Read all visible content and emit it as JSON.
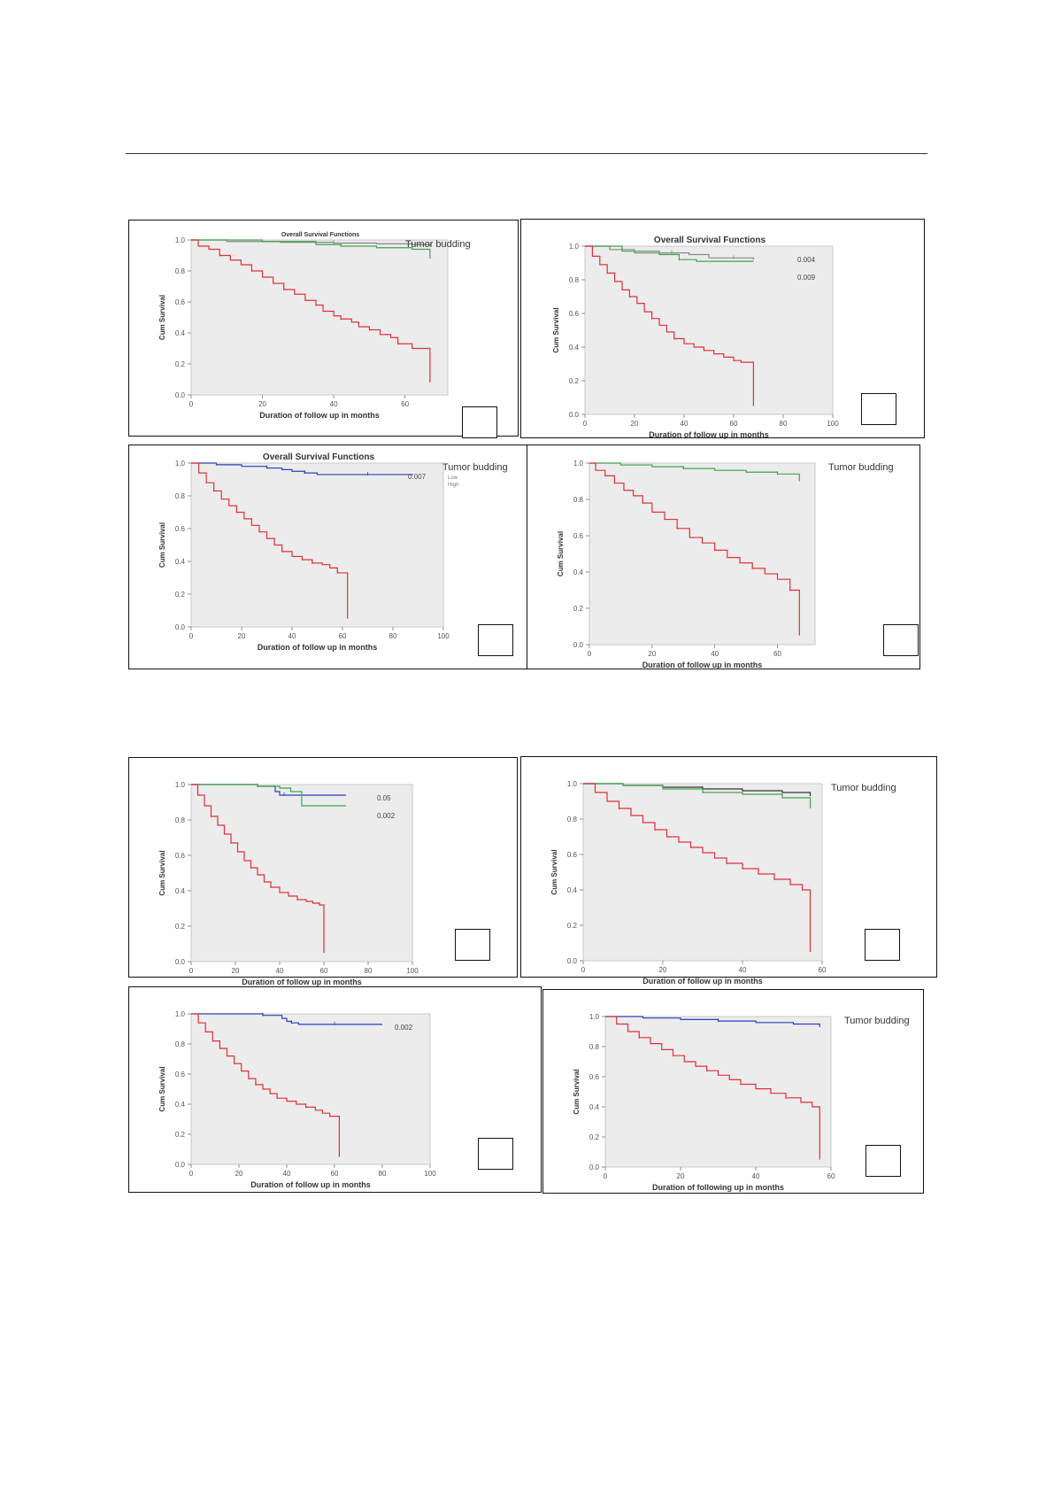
{
  "colors": {
    "red": "#e0303a",
    "green": "#3fa34d",
    "blue": "#2c3fbf",
    "gray": "#888888"
  },
  "chart_data": [
    {
      "type": "line",
      "title": "Overall Survival Functions",
      "xlabel": "Duration of follow up in months",
      "ylabel": "Cum Survival",
      "xlim": [
        0,
        72
      ],
      "x_ticks": [
        "0",
        "20",
        "40",
        "60"
      ],
      "ylim": [
        0,
        1
      ],
      "y_ticks": [
        "0.0",
        "0.2",
        "0.4",
        "0.6",
        "0.8",
        "1.0"
      ],
      "legend_title": "Tumor budding",
      "series": [
        {
          "color": "#888888",
          "x": [
            0,
            10,
            25,
            40,
            52,
            62,
            67
          ],
          "y": [
            1.0,
            0.99,
            0.985,
            0.98,
            0.975,
            0.97,
            0.96
          ]
        },
        {
          "color": "#3fa34d",
          "x": [
            0,
            20,
            35,
            42,
            52,
            62,
            67
          ],
          "y": [
            1.0,
            0.99,
            0.97,
            0.96,
            0.95,
            0.94,
            0.88
          ]
        },
        {
          "color": "#e0303a",
          "x": [
            0,
            2,
            5,
            8,
            11,
            14,
            17,
            20,
            23,
            26,
            29,
            32,
            35,
            37,
            40,
            42,
            45,
            47,
            50,
            53,
            56,
            58,
            62,
            67
          ],
          "y": [
            1.0,
            0.96,
            0.94,
            0.9,
            0.87,
            0.84,
            0.8,
            0.76,
            0.72,
            0.68,
            0.65,
            0.61,
            0.58,
            0.54,
            0.51,
            0.49,
            0.47,
            0.44,
            0.42,
            0.39,
            0.37,
            0.33,
            0.3,
            0.08
          ]
        }
      ]
    },
    {
      "type": "line",
      "title": "Overall Survival Functions",
      "xlabel": "Duration of follow up in months",
      "ylabel": "Cum Survival",
      "xlim": [
        0,
        100
      ],
      "x_ticks": [
        "0",
        "20",
        "40",
        "60",
        "80",
        "100"
      ],
      "ylim": [
        0,
        1
      ],
      "y_ticks": [
        "0.0",
        "0.2",
        "0.4",
        "0.6",
        "0.8",
        "1.0"
      ],
      "series": [
        {
          "color": "#888888",
          "x": [
            0,
            10,
            20,
            35,
            42,
            50,
            60,
            68
          ],
          "y": [
            1.0,
            0.98,
            0.96,
            0.96,
            0.95,
            0.93,
            0.93,
            0.92
          ]
        },
        {
          "color": "#3fa34d",
          "x": [
            0,
            15,
            30,
            38,
            45,
            55,
            68
          ],
          "y": [
            1.0,
            0.97,
            0.95,
            0.92,
            0.91,
            0.91,
            0.91
          ]
        },
        {
          "color": "#e0303a",
          "x": [
            0,
            3,
            6,
            9,
            12,
            15,
            18,
            21,
            24,
            27,
            30,
            33,
            36,
            40,
            44,
            48,
            52,
            56,
            60,
            63,
            68
          ],
          "y": [
            1.0,
            0.94,
            0.89,
            0.84,
            0.79,
            0.74,
            0.7,
            0.66,
            0.61,
            0.57,
            0.53,
            0.49,
            0.45,
            0.42,
            0.4,
            0.38,
            0.36,
            0.34,
            0.32,
            0.31,
            0.05
          ]
        }
      ],
      "annotations": [
        "0.004",
        "0.009"
      ]
    },
    {
      "type": "line",
      "title": "Overall Survival Functions",
      "xlabel": "Duration of follow up in months",
      "ylabel": "Cum Survival",
      "xlim": [
        0,
        100
      ],
      "x_ticks": [
        "0",
        "20",
        "40",
        "60",
        "80",
        "100"
      ],
      "ylim": [
        0,
        1
      ],
      "y_ticks": [
        "0.0",
        "0.2",
        "0.4",
        "0.6",
        "0.8",
        "1.0"
      ],
      "legend_title": "Tumor budding",
      "legend_entries": [
        "Low",
        "High"
      ],
      "series": [
        {
          "color": "#2c3fbf",
          "x": [
            0,
            10,
            20,
            30,
            36,
            40,
            45,
            50,
            60,
            70,
            80,
            88
          ],
          "y": [
            1.0,
            0.99,
            0.98,
            0.97,
            0.96,
            0.95,
            0.94,
            0.93,
            0.93,
            0.93,
            0.93,
            0.93
          ]
        },
        {
          "color": "#e0303a",
          "x": [
            0,
            3,
            6,
            9,
            12,
            15,
            18,
            21,
            24,
            27,
            30,
            33,
            36,
            40,
            44,
            48,
            52,
            55,
            58,
            62
          ],
          "y": [
            1.0,
            0.94,
            0.88,
            0.83,
            0.78,
            0.74,
            0.7,
            0.66,
            0.62,
            0.58,
            0.54,
            0.5,
            0.46,
            0.43,
            0.41,
            0.39,
            0.38,
            0.36,
            0.33,
            0.05
          ]
        }
      ],
      "annotations": [
        "0.007"
      ]
    },
    {
      "type": "line",
      "xlabel": "Duration of follow up in months",
      "ylabel": "Cum Survival",
      "xlim": [
        0,
        72
      ],
      "x_ticks": [
        "0",
        "20",
        "40",
        "60"
      ],
      "ylim": [
        0,
        1
      ],
      "y_ticks": [
        "0.0",
        "0.2",
        "0.4",
        "0.6",
        "0.8",
        "1.0"
      ],
      "legend_title": "Tumor budding",
      "series": [
        {
          "color": "#3fa34d",
          "x": [
            0,
            10,
            20,
            30,
            40,
            50,
            60,
            67
          ],
          "y": [
            1.0,
            0.99,
            0.98,
            0.97,
            0.96,
            0.95,
            0.94,
            0.9
          ]
        },
        {
          "color": "#e0303a",
          "x": [
            0,
            2,
            5,
            8,
            11,
            14,
            17,
            20,
            24,
            28,
            32,
            36,
            40,
            44,
            48,
            52,
            56,
            60,
            64,
            67
          ],
          "y": [
            1.0,
            0.96,
            0.93,
            0.89,
            0.85,
            0.82,
            0.78,
            0.73,
            0.69,
            0.64,
            0.59,
            0.56,
            0.52,
            0.48,
            0.45,
            0.42,
            0.39,
            0.36,
            0.3,
            0.05
          ]
        }
      ]
    },
    {
      "type": "line",
      "xlabel": "Duration of follow up in months",
      "ylabel": "Cum Survival",
      "xlim": [
        0,
        100
      ],
      "x_ticks": [
        "0",
        "20",
        "40",
        "60",
        "80",
        "100"
      ],
      "ylim": [
        0,
        1
      ],
      "y_ticks": [
        "0.0",
        "0.2",
        "0.4",
        "0.6",
        "0.8",
        "1.0"
      ],
      "series": [
        {
          "color": "#2c3fbf",
          "x": [
            0,
            10,
            20,
            30,
            38,
            40,
            42,
            50,
            60,
            70
          ],
          "y": [
            1.0,
            1.0,
            1.0,
            0.99,
            0.96,
            0.94,
            0.94,
            0.94,
            0.94,
            0.94
          ]
        },
        {
          "color": "#3fa34d",
          "x": [
            0,
            10,
            20,
            30,
            40,
            45,
            50,
            60,
            70
          ],
          "y": [
            1.0,
            1.0,
            1.0,
            0.99,
            0.98,
            0.96,
            0.88,
            0.88,
            0.88
          ]
        },
        {
          "color": "#e0303a",
          "x": [
            0,
            3,
            6,
            9,
            12,
            15,
            18,
            21,
            24,
            27,
            30,
            33,
            36,
            40,
            44,
            48,
            52,
            55,
            58,
            60
          ],
          "y": [
            1.0,
            0.94,
            0.88,
            0.82,
            0.77,
            0.72,
            0.67,
            0.62,
            0.57,
            0.53,
            0.49,
            0.45,
            0.42,
            0.39,
            0.37,
            0.35,
            0.34,
            0.33,
            0.32,
            0.05
          ]
        }
      ],
      "annotations": [
        "0.05",
        "0.002"
      ]
    },
    {
      "type": "line",
      "xlabel": "Duration of follow up in months",
      "ylabel": "Cum Survival",
      "xlim": [
        0,
        60
      ],
      "x_ticks": [
        "0",
        "20",
        "40",
        "60"
      ],
      "ylim": [
        0,
        1
      ],
      "y_ticks": [
        "0.0",
        "0.2",
        "0.4",
        "0.6",
        "0.8",
        "1.0"
      ],
      "legend_title": "Tumor budding",
      "series": [
        {
          "color": "#333333",
          "x": [
            0,
            10,
            20,
            30,
            40,
            50,
            57
          ],
          "y": [
            1.0,
            0.99,
            0.98,
            0.97,
            0.96,
            0.95,
            0.93
          ]
        },
        {
          "color": "#3fa34d",
          "x": [
            0,
            10,
            20,
            30,
            40,
            50,
            57
          ],
          "y": [
            1.0,
            0.99,
            0.97,
            0.95,
            0.94,
            0.92,
            0.86
          ]
        },
        {
          "color": "#e0303a",
          "x": [
            0,
            3,
            6,
            9,
            12,
            15,
            18,
            21,
            24,
            27,
            30,
            33,
            36,
            40,
            44,
            48,
            52,
            55,
            57
          ],
          "y": [
            1.0,
            0.95,
            0.9,
            0.86,
            0.82,
            0.78,
            0.74,
            0.7,
            0.67,
            0.64,
            0.61,
            0.58,
            0.55,
            0.52,
            0.49,
            0.46,
            0.43,
            0.4,
            0.05
          ]
        }
      ]
    },
    {
      "type": "line",
      "xlabel": "Duration of follow up in months",
      "ylabel": "Cum Survival",
      "xlim": [
        0,
        100
      ],
      "x_ticks": [
        "0",
        "20",
        "40",
        "60",
        "80",
        "100"
      ],
      "ylim": [
        0,
        1
      ],
      "y_ticks": [
        "0.0",
        "0.2",
        "0.4",
        "0.6",
        "0.8",
        "1.0"
      ],
      "series": [
        {
          "color": "#2c3fbf",
          "x": [
            0,
            10,
            20,
            30,
            38,
            40,
            42,
            45,
            50,
            60,
            70,
            80
          ],
          "y": [
            1.0,
            1.0,
            1.0,
            0.99,
            0.97,
            0.95,
            0.94,
            0.93,
            0.93,
            0.93,
            0.93,
            0.93
          ]
        },
        {
          "color": "#e0303a",
          "x": [
            0,
            3,
            6,
            9,
            12,
            15,
            18,
            21,
            24,
            27,
            30,
            33,
            36,
            40,
            44,
            48,
            52,
            55,
            58,
            62
          ],
          "y": [
            1.0,
            0.94,
            0.88,
            0.82,
            0.77,
            0.72,
            0.67,
            0.62,
            0.57,
            0.53,
            0.5,
            0.47,
            0.44,
            0.42,
            0.4,
            0.38,
            0.36,
            0.34,
            0.32,
            0.05
          ]
        }
      ],
      "annotations": [
        "0.002"
      ]
    },
    {
      "type": "line",
      "xlabel": "Duration of following up in months",
      "ylabel": "Cum Survival",
      "xlim": [
        0,
        60
      ],
      "x_ticks": [
        "0",
        "20",
        "40",
        "60"
      ],
      "ylim": [
        0,
        1
      ],
      "y_ticks": [
        "0.0",
        "0.2",
        "0.4",
        "0.6",
        "0.8",
        "1.0"
      ],
      "legend_title": "Tumor budding",
      "series": [
        {
          "color": "#2c3fbf",
          "x": [
            0,
            10,
            20,
            30,
            40,
            50,
            57
          ],
          "y": [
            1.0,
            0.99,
            0.98,
            0.97,
            0.96,
            0.95,
            0.93
          ]
        },
        {
          "color": "#e0303a",
          "x": [
            0,
            3,
            6,
            9,
            12,
            15,
            18,
            21,
            24,
            27,
            30,
            33,
            36,
            40,
            44,
            48,
            52,
            55,
            57
          ],
          "y": [
            1.0,
            0.95,
            0.9,
            0.86,
            0.82,
            0.78,
            0.74,
            0.7,
            0.67,
            0.64,
            0.61,
            0.58,
            0.55,
            0.52,
            0.49,
            0.46,
            0.43,
            0.4,
            0.05
          ]
        }
      ]
    }
  ]
}
